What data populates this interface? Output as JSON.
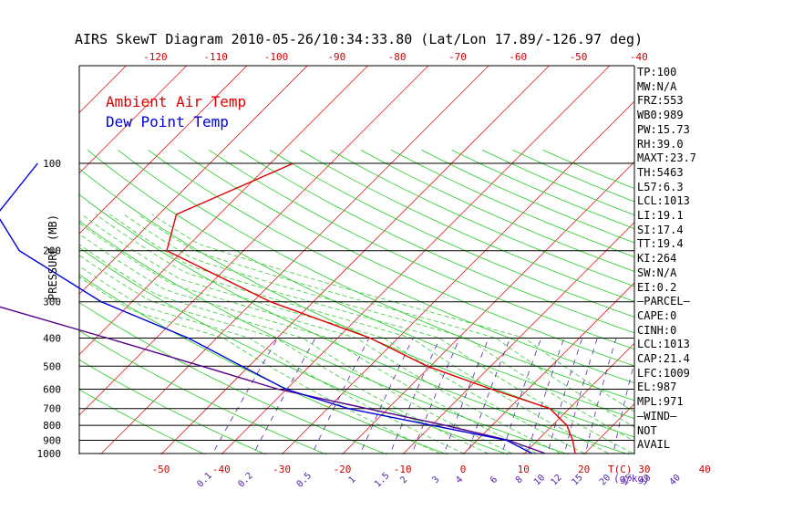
{
  "chart_data": {
    "type": "line",
    "title": "AIRS SkewT Diagram 2010-05-26/10:34:33.80 (Lat/Lon 17.89/-126.97 deg)",
    "ylabel": "PRESSURE (MB)",
    "bottom_axis_unit": "T(C)",
    "mixing_ratio_unit": "(g/kg)",
    "y_ticks": [
      "100",
      "200",
      "300",
      "400",
      "500",
      "600",
      "700",
      "800",
      "900",
      "1000"
    ],
    "y_tick_values": [
      100,
      200,
      300,
      400,
      500,
      600,
      700,
      800,
      900,
      1000
    ],
    "bottom_x_ticks": [
      "-50",
      "-40",
      "-30",
      "-20",
      "-10",
      "0",
      "10",
      "20",
      "30",
      "40"
    ],
    "bottom_x_values": [
      -50,
      -40,
      -30,
      -20,
      -10,
      0,
      10,
      20,
      30,
      40
    ],
    "top_x_ticks": [
      "-120",
      "-110",
      "-100",
      "-90",
      "-80",
      "-70",
      "-60",
      "-50",
      "-40"
    ],
    "top_x_values": [
      -120,
      -110,
      -100,
      -90,
      -80,
      -70,
      -60,
      -50,
      -40
    ],
    "mixing_ratio_labels": [
      "0.1",
      "0.2",
      "0.5",
      "1",
      "1.5",
      "2",
      "3",
      "4",
      "6",
      "8",
      "10",
      "12",
      "15",
      "20",
      "25",
      "30",
      "40"
    ],
    "mixing_ratio_values": [
      0.1,
      0.2,
      0.5,
      1,
      1.5,
      2,
      3,
      4,
      6,
      8,
      10,
      12,
      15,
      20,
      25,
      30,
      40
    ],
    "series": [
      {
        "name": "Ambient Air Temp",
        "color": "#dd0000",
        "points": [
          [
            100,
            -76.2
          ],
          [
            150,
            -87.1
          ],
          [
            200,
            -82.7
          ],
          [
            300,
            -57.1
          ],
          [
            400,
            -34.6
          ],
          [
            500,
            -20.5
          ],
          [
            600,
            -6.1
          ],
          [
            700,
            6.8
          ],
          [
            800,
            12.4
          ],
          [
            900,
            15.8
          ],
          [
            1000,
            18.4
          ]
        ]
      },
      {
        "name": "Dew Point Temp",
        "color": "#0000dd",
        "points": [
          [
            100,
            -118.5
          ],
          [
            150,
            -116.8
          ],
          [
            200,
            -107.1
          ],
          [
            300,
            -85.1
          ],
          [
            400,
            -64.7
          ],
          [
            500,
            -51.2
          ],
          [
            600,
            -40.1
          ],
          [
            700,
            -26.6
          ],
          [
            800,
            -9.9
          ],
          [
            900,
            4.8
          ],
          [
            1000,
            11.3
          ]
        ]
      }
    ],
    "parcel": {
      "color": "#550088",
      "points": [
        [
          100,
          -164.0
        ],
        [
          150,
          -153.5
        ],
        [
          200,
          -132.2
        ],
        [
          300,
          -104.8
        ],
        [
          400,
          -78.1
        ],
        [
          500,
          -57.8
        ],
        [
          600,
          -41.4
        ],
        [
          700,
          -23.5
        ],
        [
          800,
          -7.7
        ],
        [
          900,
          5.1
        ],
        [
          1000,
          13.5
        ]
      ]
    },
    "grid": {
      "isobars": true,
      "isotherms": true,
      "dry_adiabats": true,
      "moist_adiabats": true,
      "mixing_ratio": true
    },
    "legend": {
      "placement": "top-left"
    }
  },
  "stats": [
    "TP:100",
    "MW:N/A",
    "FRZ:553",
    "WB0:989",
    "PW:15.73",
    "RH:39.0",
    "MAXT:23.7",
    "TH:5463",
    "L57:6.3",
    "LCL:1013",
    "LI:19.1",
    "SI:17.4",
    "TT:19.4",
    "KI:264",
    "SW:N/A",
    "EI:0.2",
    "—PARCEL—",
    "CAPE:0",
    "CINH:0",
    "LCL:1013",
    "CAP:21.4",
    "LFC:1009",
    "EL:987",
    "MPL:971",
    "—WIND—",
    "NOT",
    "AVAIL"
  ]
}
